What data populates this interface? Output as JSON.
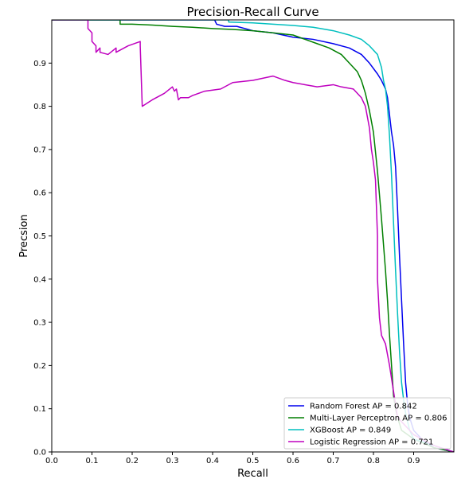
{
  "chart_data": {
    "type": "line",
    "title": "Precision-Recall Curve",
    "xlabel": "Recall",
    "ylabel": "Precsion",
    "xlim": [
      0,
      1.0
    ],
    "ylim": [
      0,
      1.0
    ],
    "xticks": [
      0.0,
      0.1,
      0.2,
      0.3,
      0.4,
      0.5,
      0.6,
      0.7,
      0.8,
      0.9
    ],
    "yticks": [
      0.0,
      0.1,
      0.2,
      0.3,
      0.4,
      0.5,
      0.6,
      0.7,
      0.8,
      0.9
    ],
    "grid": false,
    "legend_position": "lower-right",
    "series": [
      {
        "name": "Random Forest AP = 0.842",
        "color": "#0000ee",
        "x": [
          0.0,
          0.405,
          0.41,
          0.43,
          0.46,
          0.5,
          0.55,
          0.6,
          0.65,
          0.7,
          0.74,
          0.77,
          0.79,
          0.81,
          0.82,
          0.825,
          0.83,
          0.835,
          0.84,
          0.845,
          0.85,
          0.855,
          0.86,
          0.865,
          0.87,
          0.875,
          0.88,
          0.885,
          0.89,
          0.9,
          0.92,
          0.95,
          1.0
        ],
        "y": [
          1.0,
          1.0,
          0.99,
          0.985,
          0.985,
          0.975,
          0.97,
          0.96,
          0.955,
          0.945,
          0.935,
          0.92,
          0.9,
          0.875,
          0.86,
          0.85,
          0.84,
          0.82,
          0.78,
          0.74,
          0.71,
          0.66,
          0.56,
          0.45,
          0.35,
          0.25,
          0.16,
          0.11,
          0.08,
          0.05,
          0.03,
          0.01,
          0.0
        ]
      },
      {
        "name": "Multi-Layer Perceptron AP = 0.806",
        "color": "#007f00",
        "x": [
          0.0,
          0.17,
          0.17,
          0.2,
          0.25,
          0.3,
          0.35,
          0.4,
          0.45,
          0.5,
          0.55,
          0.6,
          0.63,
          0.66,
          0.69,
          0.72,
          0.74,
          0.76,
          0.77,
          0.78,
          0.79,
          0.8,
          0.81,
          0.82,
          0.83,
          0.835,
          0.84,
          0.845,
          0.85,
          0.855,
          0.86,
          0.87,
          0.9,
          0.95,
          1.0
        ],
        "y": [
          1.0,
          1.0,
          0.99,
          0.99,
          0.988,
          0.985,
          0.983,
          0.98,
          0.978,
          0.975,
          0.97,
          0.965,
          0.955,
          0.945,
          0.935,
          0.92,
          0.9,
          0.88,
          0.86,
          0.83,
          0.79,
          0.74,
          0.65,
          0.54,
          0.42,
          0.35,
          0.27,
          0.2,
          0.13,
          0.1,
          0.08,
          0.05,
          0.03,
          0.01,
          0.0
        ]
      },
      {
        "name": "XGBoost AP = 0.849",
        "color": "#00bfbf",
        "x": [
          0.0,
          0.44,
          0.44,
          0.5,
          0.55,
          0.6,
          0.65,
          0.7,
          0.74,
          0.77,
          0.79,
          0.81,
          0.82,
          0.825,
          0.83,
          0.835,
          0.84,
          0.845,
          0.85,
          0.855,
          0.86,
          0.865,
          0.87,
          0.875,
          0.88,
          0.885,
          0.89,
          0.9,
          0.95,
          1.0
        ],
        "y": [
          1.0,
          1.0,
          0.995,
          0.993,
          0.99,
          0.987,
          0.983,
          0.975,
          0.965,
          0.955,
          0.94,
          0.92,
          0.89,
          0.86,
          0.84,
          0.8,
          0.73,
          0.64,
          0.53,
          0.42,
          0.32,
          0.23,
          0.16,
          0.12,
          0.09,
          0.07,
          0.05,
          0.03,
          0.015,
          0.0
        ]
      },
      {
        "name": "Logistic Regression AP = 0.721",
        "color": "#bf00bf",
        "x": [
          0.0,
          0.09,
          0.09,
          0.1,
          0.1,
          0.11,
          0.11,
          0.12,
          0.12,
          0.14,
          0.16,
          0.16,
          0.19,
          0.22,
          0.22,
          0.225,
          0.25,
          0.28,
          0.3,
          0.305,
          0.31,
          0.315,
          0.32,
          0.34,
          0.35,
          0.38,
          0.42,
          0.45,
          0.5,
          0.55,
          0.58,
          0.6,
          0.63,
          0.66,
          0.7,
          0.72,
          0.75,
          0.77,
          0.78,
          0.79,
          0.795,
          0.8,
          0.805,
          0.81,
          0.81,
          0.815,
          0.82,
          0.83,
          0.84,
          0.85,
          0.86,
          0.9,
          0.95,
          1.0
        ],
        "y": [
          1.0,
          1.0,
          0.98,
          0.97,
          0.95,
          0.94,
          0.925,
          0.935,
          0.925,
          0.92,
          0.935,
          0.925,
          0.94,
          0.95,
          0.94,
          0.8,
          0.815,
          0.83,
          0.845,
          0.835,
          0.84,
          0.815,
          0.82,
          0.82,
          0.825,
          0.835,
          0.84,
          0.855,
          0.86,
          0.87,
          0.86,
          0.855,
          0.85,
          0.845,
          0.85,
          0.845,
          0.84,
          0.82,
          0.8,
          0.75,
          0.7,
          0.67,
          0.63,
          0.5,
          0.4,
          0.31,
          0.27,
          0.25,
          0.2,
          0.14,
          0.08,
          0.04,
          0.015,
          0.0
        ]
      }
    ]
  }
}
